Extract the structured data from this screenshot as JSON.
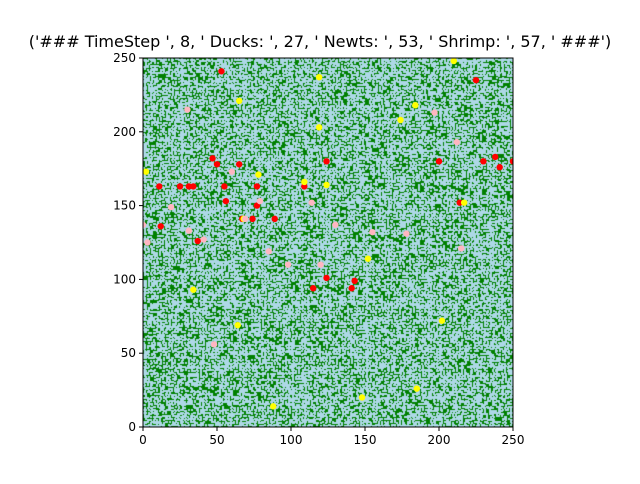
{
  "chart_data": {
    "type": "scatter",
    "title": "('### TimeStep ', 8, ' Ducks: ', 27, ' Newts: ', 53, ' Shrimp: ', 57, ' ###')",
    "xlabel": "",
    "ylabel": "",
    "xlim": [
      0,
      250
    ],
    "ylim": [
      0,
      250
    ],
    "xticks": [
      0,
      50,
      100,
      150,
      200,
      250
    ],
    "yticks": [
      0,
      50,
      100,
      150,
      200,
      250
    ],
    "grid": false,
    "background": {
      "type": "heatmap",
      "colors": [
        "#008000",
        "#add8e6"
      ]
    },
    "series": [
      {
        "color": "#ff0000",
        "points": [
          [
            53,
            241
          ],
          [
            47,
            182
          ],
          [
            50,
            178
          ],
          [
            65,
            178
          ],
          [
            11,
            163
          ],
          [
            25,
            163
          ],
          [
            31,
            163
          ],
          [
            34,
            163
          ],
          [
            55,
            163
          ],
          [
            77,
            163
          ],
          [
            109,
            163
          ],
          [
            124,
            180
          ],
          [
            200,
            180
          ],
          [
            230,
            180
          ],
          [
            238,
            183
          ],
          [
            241,
            176
          ],
          [
            250,
            180
          ],
          [
            56,
            153
          ],
          [
            77,
            150
          ],
          [
            67,
            141
          ],
          [
            74,
            141
          ],
          [
            89,
            141
          ],
          [
            214,
            152
          ],
          [
            12,
            136
          ],
          [
            37,
            126
          ],
          [
            115,
            94
          ],
          [
            124,
            101
          ],
          [
            141,
            94
          ],
          [
            143,
            99
          ],
          [
            225,
            235
          ]
        ]
      },
      {
        "color": "#ffff00",
        "points": [
          [
            2,
            173
          ],
          [
            78,
            171
          ],
          [
            109,
            166
          ],
          [
            124,
            164
          ],
          [
            68,
            141
          ],
          [
            34,
            93
          ],
          [
            64,
            69
          ],
          [
            202,
            72
          ],
          [
            185,
            26
          ],
          [
            88,
            14
          ],
          [
            148,
            20
          ],
          [
            119,
            237
          ],
          [
            65,
            221
          ],
          [
            119,
            203
          ],
          [
            174,
            208
          ],
          [
            210,
            248
          ],
          [
            184,
            218
          ],
          [
            152,
            114
          ],
          [
            217,
            152
          ]
        ]
      },
      {
        "color": "#ffb6c1",
        "points": [
          [
            30,
            215
          ],
          [
            197,
            213
          ],
          [
            60,
            173
          ],
          [
            212,
            193
          ],
          [
            19,
            149
          ],
          [
            31,
            133
          ],
          [
            41,
            127
          ],
          [
            69,
            141
          ],
          [
            114,
            152
          ],
          [
            79,
            153
          ],
          [
            98,
            110
          ],
          [
            120,
            110
          ],
          [
            155,
            132
          ],
          [
            178,
            131
          ],
          [
            215,
            121
          ],
          [
            48,
            56
          ],
          [
            85,
            119
          ],
          [
            130,
            137
          ],
          [
            3,
            125
          ],
          [
            0,
            137
          ]
        ]
      }
    ]
  }
}
